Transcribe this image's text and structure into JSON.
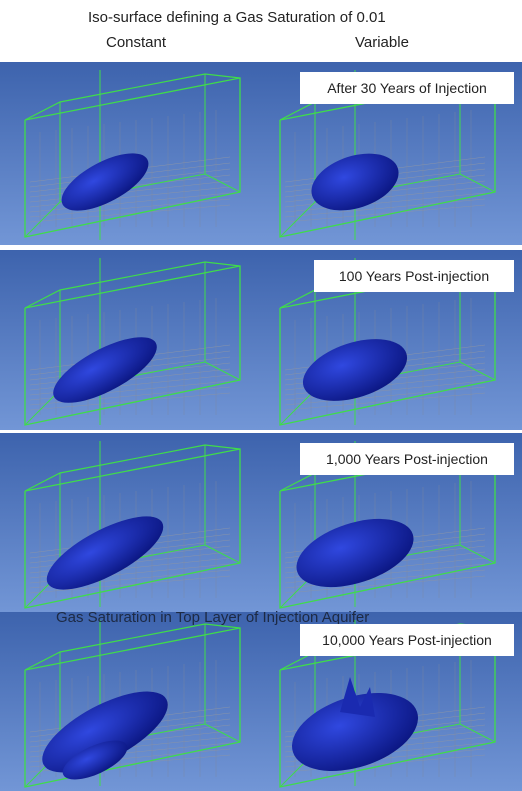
{
  "header": {
    "title": "Iso-surface defining a Gas Saturation of 0.01",
    "columns": [
      "Constant",
      "Variable"
    ]
  },
  "panels": [
    {
      "label": "After 30 Years of Injection"
    },
    {
      "label": "100 Years Post-injection"
    },
    {
      "label": "1,000 Years Post-injection"
    },
    {
      "label": "10,000 Years Post-injection"
    }
  ],
  "overlay_text": "Gas Saturation in Top Layer of Injection Aquifer"
}
